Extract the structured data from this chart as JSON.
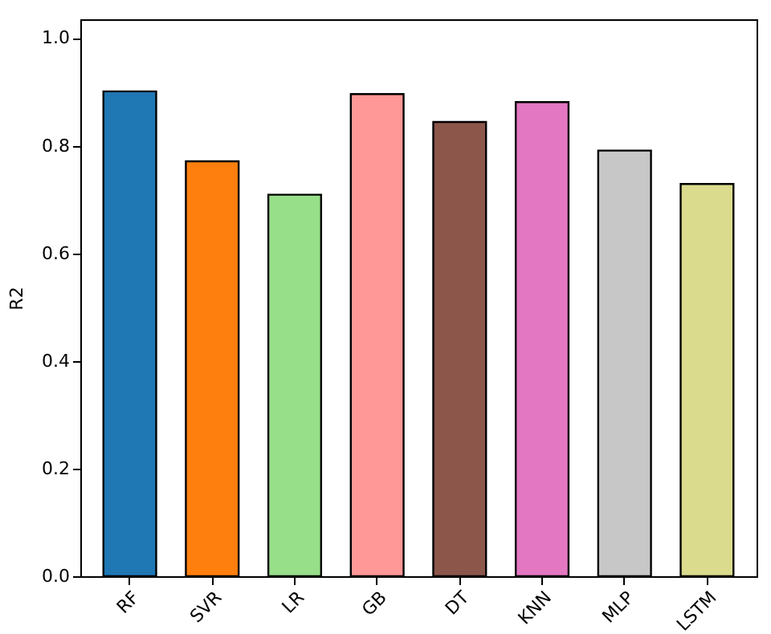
{
  "chart_data": {
    "type": "bar",
    "ylabel": "R2",
    "categories": [
      "RF",
      "SVR",
      "LR",
      "GB",
      "DT",
      "KNN",
      "MLP",
      "LSTM"
    ],
    "values": [
      0.901,
      0.771,
      0.709,
      0.896,
      0.844,
      0.881,
      0.791,
      0.729
    ],
    "colors": [
      "#1f77b4",
      "#ff7f0e",
      "#98df8a",
      "#ff9896",
      "#8c564b",
      "#e377c2",
      "#c7c7c7",
      "#dbdb8d"
    ],
    "ylim": [
      0,
      1.035
    ],
    "yticks": [
      {
        "value": 0,
        "label": "0.0"
      },
      {
        "value": 0.2,
        "label": "0.2"
      },
      {
        "value": 0.4,
        "label": "0.4"
      },
      {
        "value": 0.6,
        "label": "0.6"
      },
      {
        "value": 0.8,
        "label": "0.8"
      },
      {
        "value": 1,
        "label": "1.0"
      }
    ],
    "grid": false
  }
}
